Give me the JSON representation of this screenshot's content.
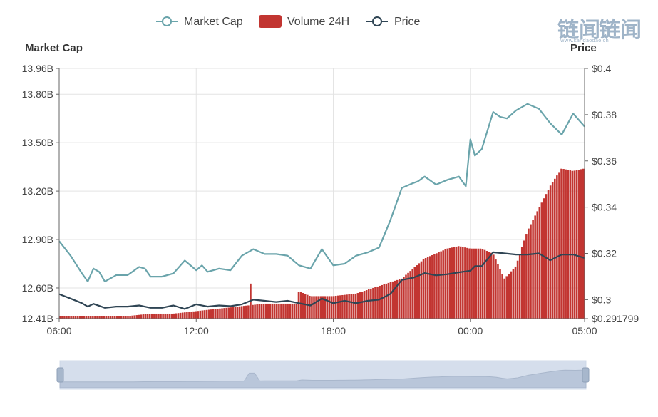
{
  "chart_data": {
    "type": "line",
    "legend": [
      {
        "name": "Market Cap",
        "color": "#6aa4ab",
        "icon": "line-circle-icon"
      },
      {
        "name": "Volume 24H",
        "color": "#c23531",
        "icon": "bar-rect-icon"
      },
      {
        "name": "Price",
        "color": "#2f4554",
        "icon": "line-circle-icon"
      }
    ],
    "legend_position": "top-center",
    "left_axis": {
      "name": "Market Cap",
      "ticks": [
        12.41,
        12.6,
        12.9,
        13.2,
        13.5,
        13.8,
        13.96
      ],
      "tick_labels": [
        "12.41B",
        "12.60B",
        "12.90B",
        "13.20B",
        "13.50B",
        "13.80B",
        "13.96B"
      ],
      "range": [
        12.41,
        13.96
      ]
    },
    "right_axis": {
      "name": "Price",
      "ticks": [
        0.291799,
        0.3,
        0.32,
        0.34,
        0.36,
        0.38,
        0.4
      ],
      "tick_labels": [
        "$0.291799",
        "$0.3",
        "$0.32",
        "$0.34",
        "$0.36",
        "$0.38",
        "$0.4"
      ],
      "range": [
        0.291799,
        0.4
      ]
    },
    "x_axis": {
      "tick_labels": [
        "06:00",
        "12:00",
        "18:00",
        "00:00",
        "05:00"
      ],
      "ticks": [
        0,
        6,
        12,
        18,
        23
      ],
      "range": [
        0,
        23
      ]
    },
    "grid": true,
    "series": [
      {
        "name": "Market Cap",
        "axis": "left",
        "color": "#6aa4ab",
        "x": [
          0,
          0.5,
          1,
          1.25,
          1.5,
          1.75,
          2,
          2.5,
          3,
          3.5,
          3.75,
          4,
          4.5,
          5,
          5.5,
          6,
          6.25,
          6.5,
          7,
          7.5,
          8,
          8.5,
          9,
          9.5,
          10,
          10.5,
          11,
          11.5,
          12,
          12.5,
          13,
          13.5,
          14,
          14.5,
          15,
          15.5,
          15.7,
          16,
          16.5,
          17,
          17.5,
          17.8,
          18,
          18.2,
          18.5,
          19,
          19.3,
          19.6,
          20,
          20.5,
          21,
          21.5,
          22,
          22.5,
          23
        ],
        "values": [
          12.89,
          12.8,
          12.69,
          12.64,
          12.72,
          12.7,
          12.64,
          12.68,
          12.68,
          12.73,
          12.72,
          12.67,
          12.67,
          12.69,
          12.77,
          12.71,
          12.74,
          12.7,
          12.72,
          12.71,
          12.8,
          12.84,
          12.81,
          12.81,
          12.8,
          12.74,
          12.72,
          12.84,
          12.74,
          12.75,
          12.8,
          12.82,
          12.85,
          13.02,
          13.22,
          13.25,
          13.26,
          13.29,
          13.24,
          13.27,
          13.29,
          13.23,
          13.52,
          13.42,
          13.46,
          13.69,
          13.66,
          13.65,
          13.7,
          13.74,
          13.71,
          13.62,
          13.55,
          13.68,
          13.6
        ]
      },
      {
        "name": "Price",
        "axis": "right",
        "color": "#2f4554",
        "x": [
          0,
          0.5,
          1,
          1.25,
          1.5,
          2,
          2.5,
          3,
          3.5,
          4,
          4.5,
          5,
          5.5,
          6,
          6.5,
          7,
          7.5,
          8,
          8.5,
          9,
          9.5,
          10,
          10.5,
          11,
          11.5,
          12,
          12.5,
          13,
          13.5,
          14,
          14.5,
          15,
          15.5,
          16,
          16.5,
          17,
          17.5,
          18,
          18.2,
          18.5,
          19,
          19.5,
          20,
          20.5,
          21,
          21.5,
          22,
          22.5,
          23
        ],
        "values": [
          0.3024,
          0.3005,
          0.2985,
          0.297,
          0.2982,
          0.2965,
          0.297,
          0.297,
          0.2975,
          0.2965,
          0.2965,
          0.2975,
          0.296,
          0.298,
          0.297,
          0.2975,
          0.2972,
          0.298,
          0.3,
          0.2995,
          0.299,
          0.2995,
          0.2985,
          0.2975,
          0.3005,
          0.2985,
          0.2995,
          0.2985,
          0.2995,
          0.3,
          0.3025,
          0.3085,
          0.3095,
          0.3115,
          0.3105,
          0.311,
          0.3118,
          0.3125,
          0.3145,
          0.3145,
          0.3205,
          0.32,
          0.3195,
          0.3195,
          0.32,
          0.317,
          0.3195,
          0.3195,
          0.318
        ]
      },
      {
        "name": "Volume 24H",
        "type": "bar",
        "color": "#c23531",
        "note_scale": "no axis",
        "x": [
          0,
          1,
          2,
          3,
          4,
          5,
          6,
          7,
          8,
          9,
          10,
          10.4,
          10.5,
          11,
          12,
          13,
          14,
          15,
          16,
          17,
          17.5,
          18,
          18.5,
          19,
          19.5,
          20,
          20.5,
          21,
          21.5,
          22,
          22.5,
          23
        ],
        "values": [
          0.01,
          0.01,
          0.01,
          0.01,
          0.02,
          0.02,
          0.03,
          0.04,
          0.05,
          0.06,
          0.06,
          0.06,
          0.11,
          0.09,
          0.09,
          0.1,
          0.13,
          0.16,
          0.24,
          0.28,
          0.29,
          0.28,
          0.28,
          0.26,
          0.16,
          0.21,
          0.35,
          0.44,
          0.53,
          0.6,
          0.59,
          0.6
        ]
      }
    ],
    "zoom_slider": {
      "start": 0,
      "end": 100
    }
  },
  "watermark": {
    "text": "链闻",
    "subtext": "www.kandaodao.cn"
  }
}
